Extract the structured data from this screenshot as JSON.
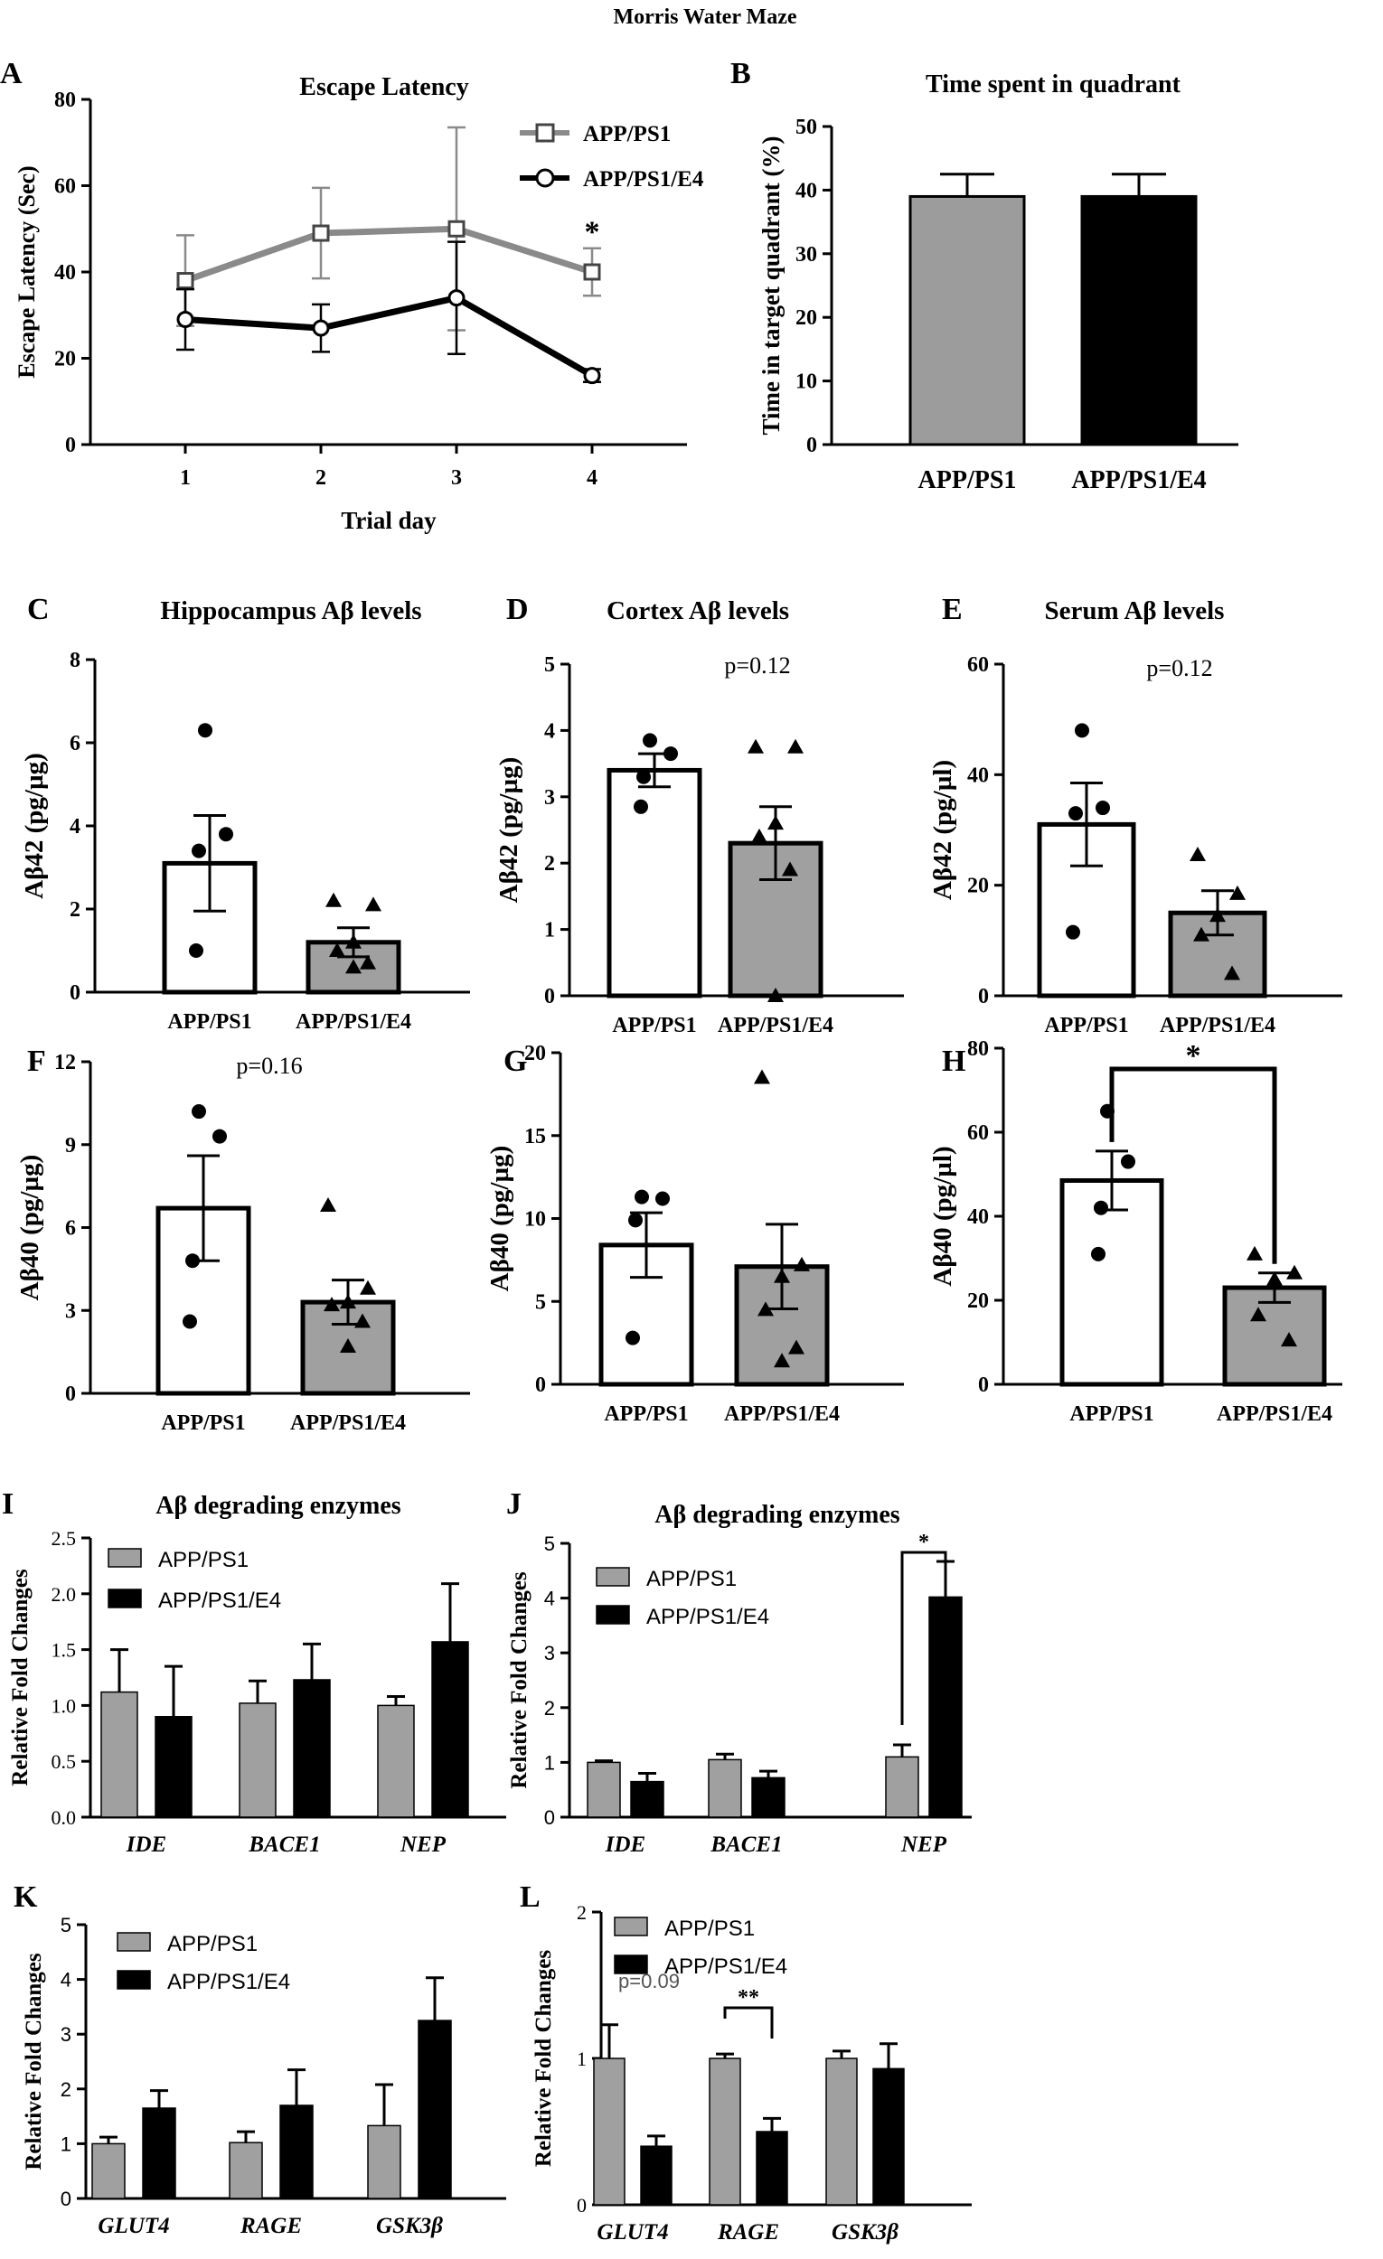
{
  "figure_title": "Morris Water Maze",
  "chart_data": [
    {
      "id": "A",
      "type": "line",
      "title": "Escape Latency",
      "xlabel": "Trial day",
      "ylabel": "Escape Latency (Sec)",
      "ylim": [
        0,
        80
      ],
      "yticks": [
        0,
        20,
        40,
        60,
        80
      ],
      "x": [
        1,
        2,
        3,
        4
      ],
      "xticks": [
        "1",
        "2",
        "3",
        "4"
      ],
      "series": [
        {
          "name": "APP/PS1",
          "values": [
            38,
            49,
            50,
            40
          ],
          "errors": [
            10.5,
            10.5,
            23.5,
            5.5
          ],
          "color": "#8a8a8a",
          "marker": "square"
        },
        {
          "name": "APP/PS1/E4",
          "values": [
            29,
            27,
            34,
            16
          ],
          "errors": [
            7,
            5.5,
            13,
            1.5
          ],
          "color": "#000000",
          "marker": "circle"
        }
      ],
      "annotations": [
        {
          "text": "*",
          "x": 4,
          "y": 50
        }
      ]
    },
    {
      "id": "B",
      "type": "bar",
      "title": "Time spent in quadrant",
      "ylabel": "Time in target quadrant (%)",
      "ylim": [
        0,
        50
      ],
      "yticks": [
        0,
        10,
        20,
        30,
        40,
        50
      ],
      "categories": [
        "APP/PS1",
        "APP/PS1/E4"
      ],
      "values": [
        39,
        39
      ],
      "errors": [
        3.5,
        3.5
      ],
      "colors": [
        "#9c9c9c",
        "#000000"
      ]
    },
    {
      "id": "C",
      "type": "bar",
      "title": "Hippocampus Aβ levels",
      "ylabel": "Aβ42 (pg/µg)",
      "ylim": [
        0,
        8
      ],
      "yticks": [
        0,
        2,
        4,
        6,
        8
      ],
      "categories": [
        "APP/PS1",
        "APP/PS1/E4"
      ],
      "values": [
        3.1,
        1.2
      ],
      "errors": [
        1.15,
        0.35
      ],
      "colors": [
        "#ffffff",
        "#a0a0a0"
      ],
      "points": [
        [
          6.3,
          3.8,
          3.4,
          1.0
        ],
        [
          2.2,
          2.1,
          1.2,
          1.0,
          0.7,
          0.6
        ]
      ]
    },
    {
      "id": "D",
      "type": "bar",
      "title": "Cortex Aβ levels",
      "ylabel": "Aβ42 (pg/µg)",
      "ylim": [
        0,
        5
      ],
      "yticks": [
        0,
        1,
        2,
        3,
        4,
        5
      ],
      "categories": [
        "APP/PS1",
        "APP/PS1/E4"
      ],
      "values": [
        3.4,
        2.3
      ],
      "errors": [
        0.25,
        0.55
      ],
      "colors": [
        "#ffffff",
        "#a0a0a0"
      ],
      "points": [
        [
          3.85,
          3.65,
          3.3,
          2.85
        ],
        [
          3.75,
          3.75,
          2.6,
          2.4,
          1.9,
          0.0
        ]
      ],
      "annotations": [
        {
          "text": "p=0.12"
        }
      ]
    },
    {
      "id": "E",
      "type": "bar",
      "title": "Serum Aβ levels",
      "ylabel": "Aβ42 (pg/µl)",
      "ylim": [
        0,
        60
      ],
      "yticks": [
        0,
        20,
        40,
        60
      ],
      "categories": [
        "APP/PS1",
        "APP/PS1/E4"
      ],
      "values": [
        31,
        15
      ],
      "errors": [
        7.5,
        4
      ],
      "colors": [
        "#ffffff",
        "#a0a0a0"
      ],
      "points": [
        [
          48,
          34,
          33,
          11.5
        ],
        [
          25.5,
          18.5,
          14.5,
          11,
          4
        ]
      ],
      "annotations": [
        {
          "text": "p=0.12"
        }
      ]
    },
    {
      "id": "F",
      "type": "bar",
      "ylabel": "Aβ40 (pg/µg)",
      "ylim": [
        0,
        12
      ],
      "yticks": [
        0,
        3,
        6,
        9,
        12
      ],
      "categories": [
        "APP/PS1",
        "APP/PS1/E4"
      ],
      "values": [
        6.7,
        3.3
      ],
      "errors": [
        1.9,
        0.8
      ],
      "colors": [
        "#ffffff",
        "#a0a0a0"
      ],
      "points": [
        [
          10.2,
          9.3,
          4.8,
          2.6
        ],
        [
          6.8,
          3.8,
          3.3,
          3.2,
          2.6,
          1.7
        ]
      ],
      "annotations": [
        {
          "text": "p=0.16"
        }
      ]
    },
    {
      "id": "G",
      "type": "bar",
      "ylabel": "Aβ40 (pg/µg)",
      "ylim": [
        0,
        20
      ],
      "yticks": [
        0,
        5,
        10,
        15,
        20
      ],
      "categories": [
        "APP/PS1",
        "APP/PS1/E4"
      ],
      "values": [
        8.4,
        7.1
      ],
      "errors": [
        1.95,
        2.55
      ],
      "colors": [
        "#ffffff",
        "#a0a0a0"
      ],
      "points": [
        [
          11.3,
          11.2,
          9.9,
          2.8
        ],
        [
          18.5,
          7.2,
          6.5,
          4.5,
          2.2,
          1.4
        ]
      ]
    },
    {
      "id": "H",
      "type": "bar",
      "ylabel": "Aβ40 (pg/µl)",
      "ylim": [
        0,
        80
      ],
      "yticks": [
        0,
        20,
        40,
        60,
        80
      ],
      "categories": [
        "APP/PS1",
        "APP/PS1/E4"
      ],
      "values": [
        48.5,
        23
      ],
      "errors": [
        7,
        3.5
      ],
      "colors": [
        "#ffffff",
        "#a0a0a0"
      ],
      "points": [
        [
          65,
          53,
          42,
          31
        ],
        [
          31,
          26.5,
          25,
          16.5,
          10.5
        ]
      ],
      "annotations": [
        {
          "text": "*"
        }
      ]
    },
    {
      "id": "I",
      "type": "bar",
      "title": "Aβ degrading enzymes",
      "ylabel": "Relative Fold Changes",
      "ylim": [
        0,
        2.5
      ],
      "yticks": [
        "0.0",
        "0.5",
        "1.0",
        "1.5",
        "2.0",
        "2.5"
      ],
      "categories": [
        "IDE",
        "BACE1",
        "NEP"
      ],
      "series": [
        {
          "name": "APP/PS1",
          "values": [
            1.12,
            1.02,
            1.0
          ],
          "errors": [
            0.38,
            0.2,
            0.08
          ],
          "color": "#a0a0a0"
        },
        {
          "name": "APP/PS1/E4",
          "values": [
            0.9,
            1.23,
            1.57
          ],
          "errors": [
            0.45,
            0.32,
            0.52
          ],
          "color": "#000000"
        }
      ]
    },
    {
      "id": "J",
      "type": "bar",
      "title": "Aβ degrading enzymes",
      "ylabel": "Relative Fold Changes",
      "ylim": [
        0,
        5
      ],
      "yticks": [
        0,
        1,
        2,
        3,
        4,
        5
      ],
      "categories": [
        "IDE",
        "BACE1",
        "NEP"
      ],
      "series": [
        {
          "name": "APP/PS1",
          "values": [
            1.0,
            1.05,
            1.1
          ],
          "errors": [
            0.03,
            0.1,
            0.22
          ],
          "color": "#a0a0a0"
        },
        {
          "name": "APP/PS1/E4",
          "values": [
            0.65,
            0.72,
            4.02
          ],
          "errors": [
            0.15,
            0.12,
            0.65
          ],
          "color": "#000000"
        }
      ],
      "annotations": [
        {
          "text": "*"
        }
      ]
    },
    {
      "id": "K",
      "type": "bar",
      "ylabel": "Relative Fold Changes",
      "ylim": [
        0,
        5
      ],
      "yticks": [
        0,
        1,
        2,
        3,
        4,
        5
      ],
      "categories": [
        "GLUT4",
        "RAGE",
        "GSK3β"
      ],
      "series": [
        {
          "name": "APP/PS1",
          "values": [
            1.0,
            1.02,
            1.33
          ],
          "errors": [
            0.12,
            0.2,
            0.75
          ],
          "color": "#a0a0a0"
        },
        {
          "name": "APP/PS1/E4",
          "values": [
            1.65,
            1.7,
            3.25
          ],
          "errors": [
            0.32,
            0.65,
            0.78
          ],
          "color": "#000000"
        }
      ]
    },
    {
      "id": "L",
      "type": "bar",
      "ylabel": "Relative Fold Changes",
      "ylim": [
        0,
        2
      ],
      "yticks": [
        0,
        1,
        2
      ],
      "categories": [
        "GLUT4",
        "RAGE",
        "GSK3β"
      ],
      "series": [
        {
          "name": "APP/PS1",
          "values": [
            1.0,
            1.0,
            1.0
          ],
          "errors": [
            0.23,
            0.03,
            0.05
          ],
          "color": "#a0a0a0"
        },
        {
          "name": "APP/PS1/E4",
          "values": [
            0.4,
            0.5,
            0.93
          ],
          "errors": [
            0.07,
            0.09,
            0.17
          ],
          "color": "#000000"
        }
      ],
      "annotations": [
        {
          "text": "p=0.09"
        },
        {
          "text": "**"
        }
      ]
    }
  ]
}
